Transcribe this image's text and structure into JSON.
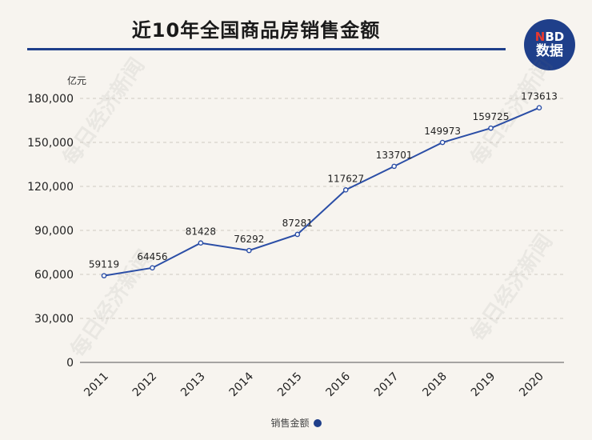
{
  "header": {
    "title": "近10年全国商品房销售金额",
    "logo_line1_accent": "N",
    "logo_line1_rest": "BD",
    "logo_line2": "数据"
  },
  "watermark_text": "每日经济新闻",
  "colors": {
    "line": "#2b4ea6",
    "accent": "#1f3f8a",
    "grid": "#cfcac2"
  },
  "chart_data": {
    "type": "line",
    "title": "近10年全国商品房销售金额",
    "ylabel": "亿元",
    "xlabel": "",
    "categories": [
      "2011",
      "2012",
      "2013",
      "2014",
      "2015",
      "2016",
      "2017",
      "2018",
      "2019",
      "2020"
    ],
    "series": [
      {
        "name": "销售金额",
        "values": [
          59119,
          64456,
          81428,
          76292,
          87281,
          117627,
          133701,
          149973,
          159725,
          173613
        ]
      }
    ],
    "yticks": [
      "0",
      "30,000",
      "60,000",
      "90,000",
      "120,000",
      "150,000",
      "180,000"
    ],
    "ylim": [
      0,
      180000
    ],
    "grid": true,
    "legend_position": "bottom-center"
  }
}
